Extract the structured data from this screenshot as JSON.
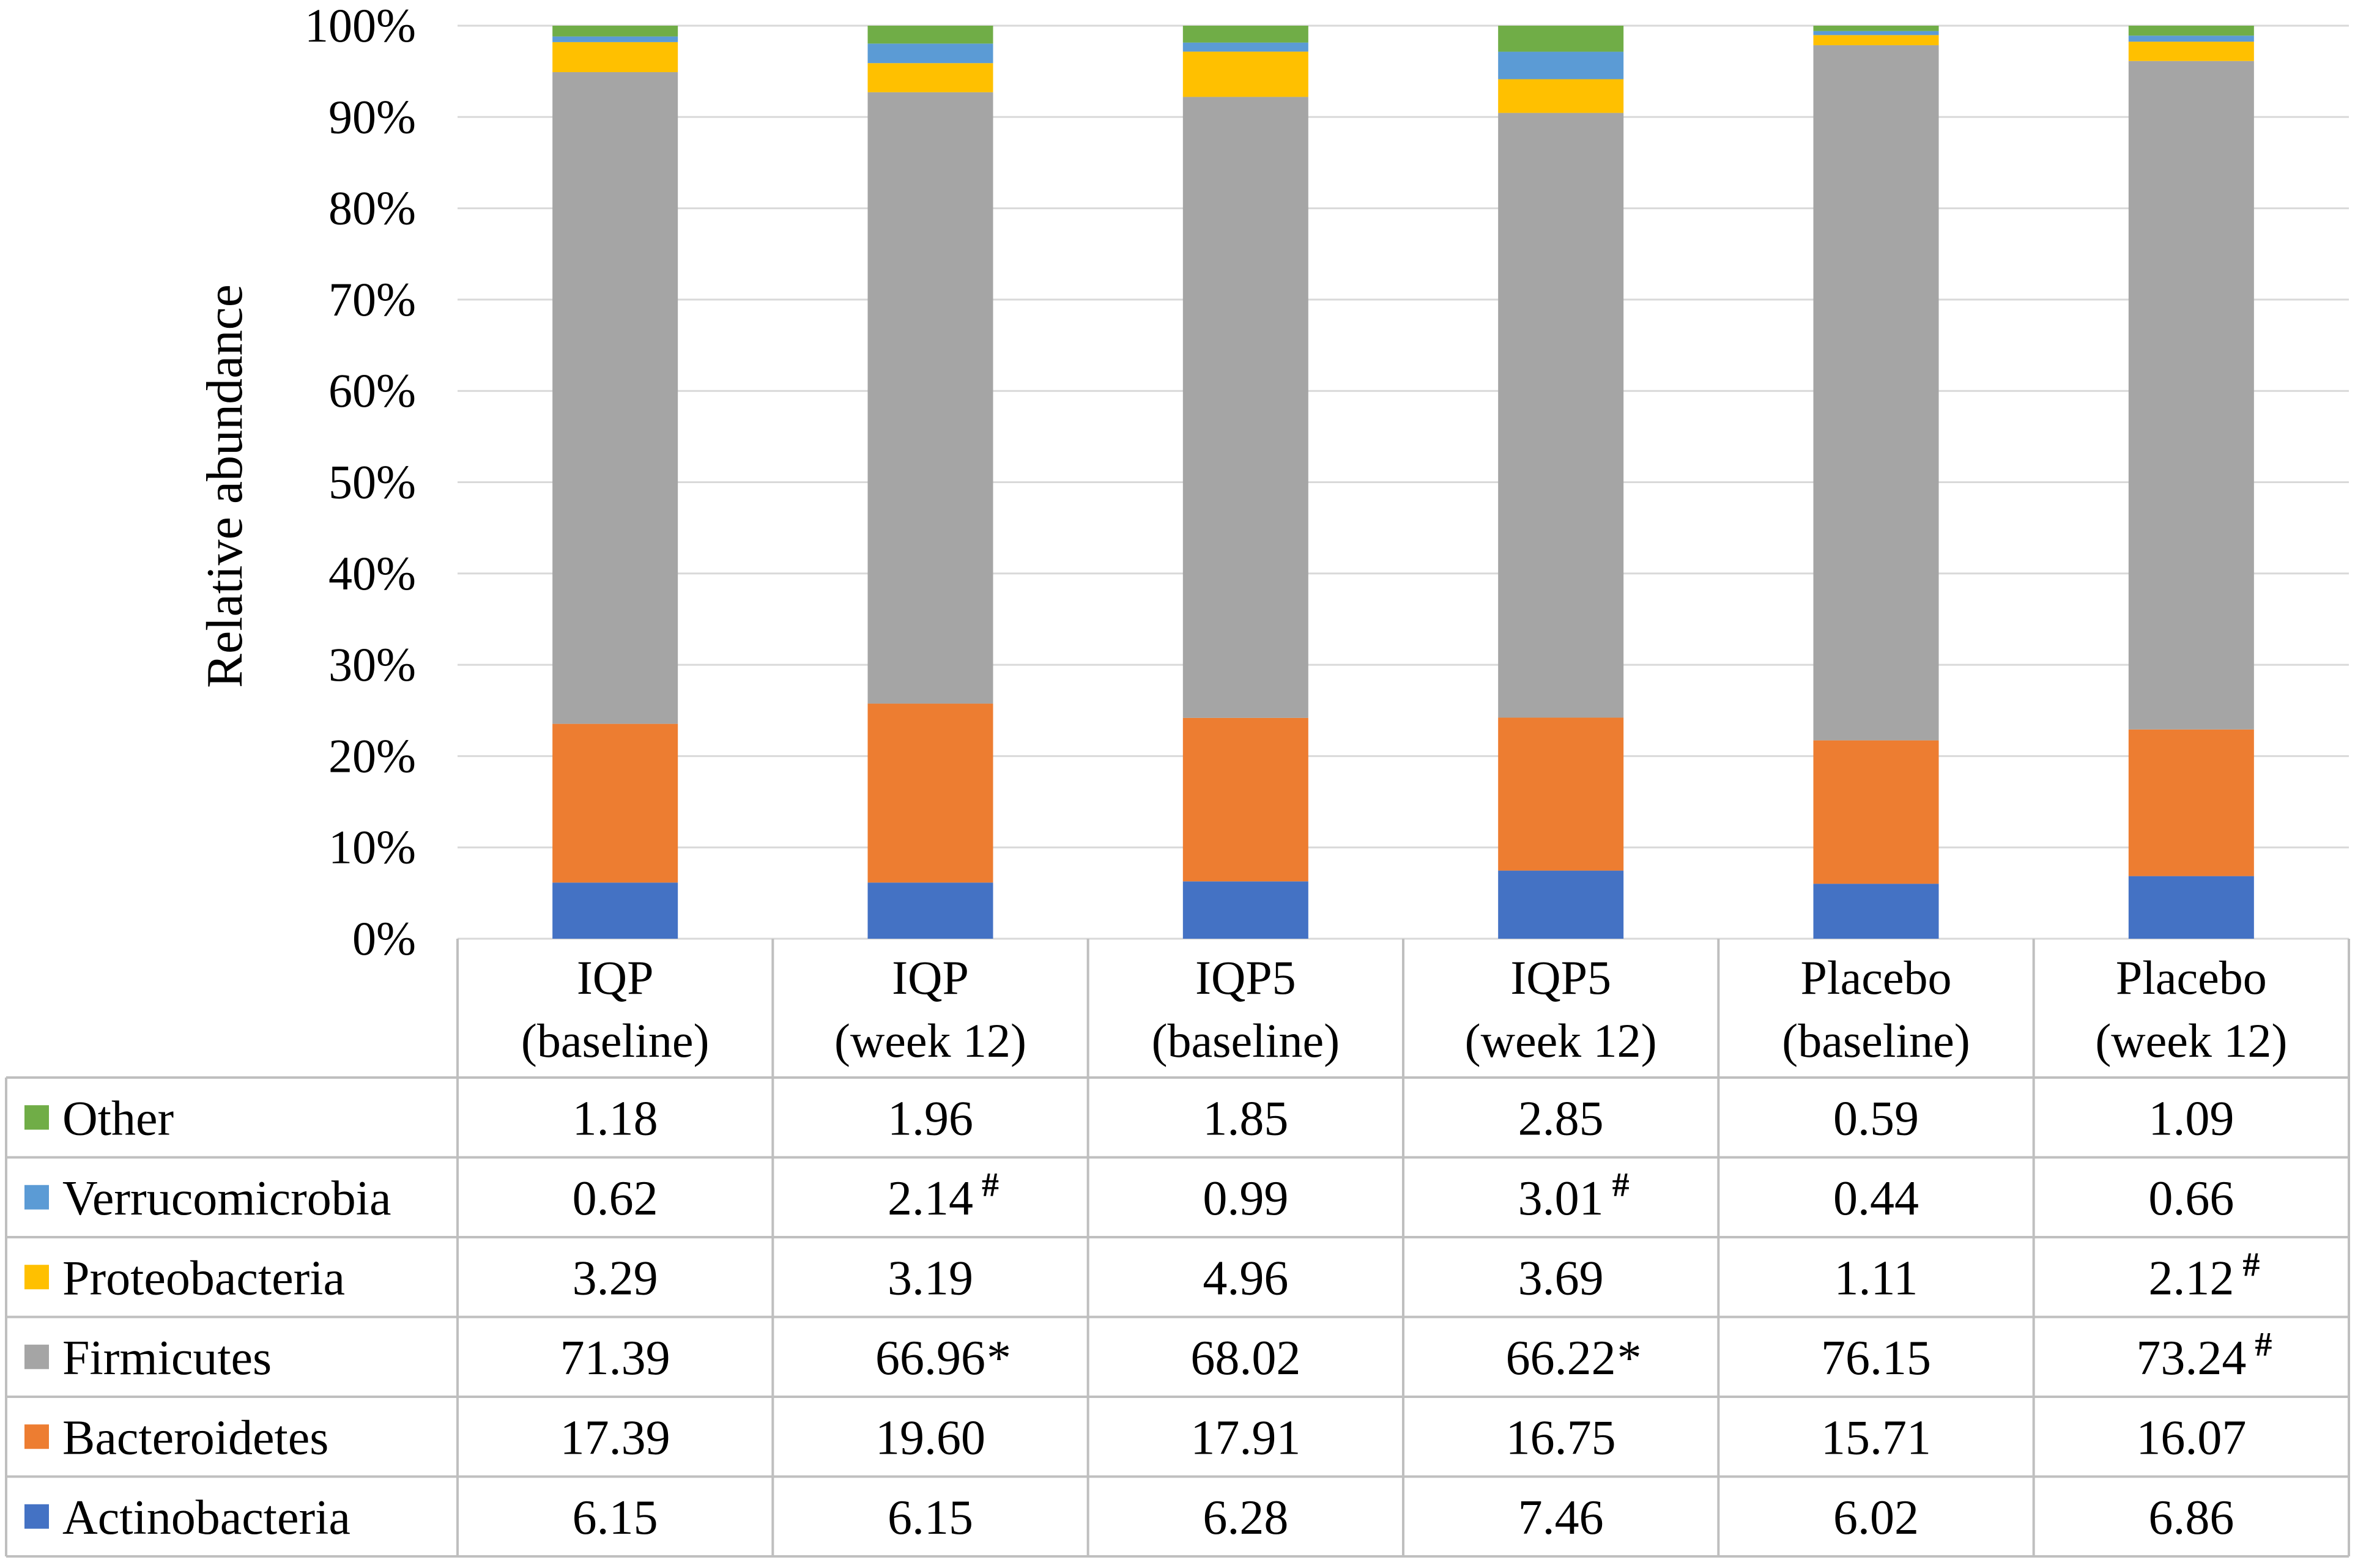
{
  "chart_data": {
    "type": "bar",
    "stacked": true,
    "percent": true,
    "title": "",
    "xlabel": "",
    "ylabel": "Relative abundance",
    "ylim": [
      0,
      100
    ],
    "yticks": [
      "0%",
      "10%",
      "20%",
      "30%",
      "40%",
      "50%",
      "60%",
      "70%",
      "80%",
      "90%",
      "100%"
    ],
    "categories": [
      [
        "IQP",
        "(baseline)"
      ],
      [
        "IQP",
        "(week 12)"
      ],
      [
        "IQP5",
        "(baseline)"
      ],
      [
        "IQP5",
        "(week 12)"
      ],
      [
        "Placebo",
        "(baseline)"
      ],
      [
        "Placebo",
        "(week 12)"
      ]
    ],
    "series": [
      {
        "name": "Actinobacteria",
        "color": "#4472c4",
        "values": [
          6.15,
          6.15,
          6.28,
          7.46,
          6.02,
          6.86
        ],
        "labels": [
          "6.15",
          "6.15",
          "6.28",
          "7.46",
          "6.02",
          "6.86"
        ],
        "marks": [
          "",
          "",
          "",
          "",
          "",
          ""
        ]
      },
      {
        "name": "Bacteroidetes",
        "color": "#ed7d31",
        "values": [
          17.39,
          19.6,
          17.91,
          16.75,
          15.71,
          16.07
        ],
        "labels": [
          "17.39",
          "19.60",
          "17.91",
          "16.75",
          "15.71",
          "16.07"
        ],
        "marks": [
          "",
          "",
          "",
          "",
          "",
          ""
        ]
      },
      {
        "name": "Firmicutes",
        "color": "#a5a5a5",
        "values": [
          71.39,
          66.96,
          68.02,
          66.22,
          76.15,
          73.24
        ],
        "labels": [
          "71.39",
          "66.96",
          "68.02",
          "66.22",
          "76.15",
          "73.24"
        ],
        "marks": [
          "",
          "*",
          "",
          "*",
          "",
          "#"
        ]
      },
      {
        "name": "Proteobacteria",
        "color": "#ffc000",
        "values": [
          3.29,
          3.19,
          4.96,
          3.69,
          1.11,
          2.12
        ],
        "labels": [
          "3.29",
          "3.19",
          "4.96",
          "3.69",
          "1.11",
          "2.12"
        ],
        "marks": [
          "",
          "",
          "",
          "",
          "",
          "#"
        ]
      },
      {
        "name": "Verrucomicrobia",
        "color": "#5b9bd5",
        "values": [
          0.62,
          2.14,
          0.99,
          3.01,
          0.44,
          0.66
        ],
        "labels": [
          "0.62",
          "2.14",
          "0.99",
          "3.01",
          "0.44",
          "0.66"
        ],
        "marks": [
          "",
          "#",
          "",
          "#",
          "",
          ""
        ]
      },
      {
        "name": "Other",
        "color": "#70ad47",
        "values": [
          1.18,
          1.96,
          1.85,
          2.85,
          0.59,
          1.09
        ],
        "labels": [
          "1.18",
          "1.96",
          "1.85",
          "2.85",
          "0.59",
          "1.09"
        ],
        "marks": [
          "",
          "",
          "",
          "",
          "",
          ""
        ]
      }
    ],
    "table_row_order": [
      "Other",
      "Verrucomicrobia",
      "Proteobacteria",
      "Firmicutes",
      "Bacteroidetes",
      "Actinobacteria"
    ],
    "grid": true,
    "legend": "data-table-rows"
  }
}
